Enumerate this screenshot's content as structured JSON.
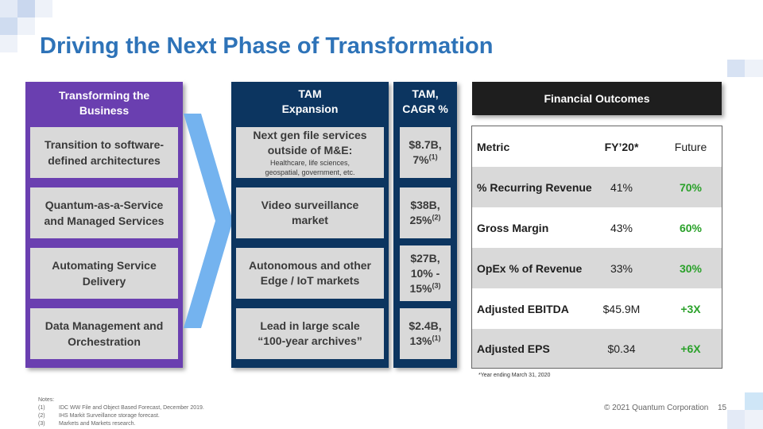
{
  "title": "Driving the Next Phase of Transformation",
  "colors": {
    "title": "#2e73b8",
    "purple": "#6a3fb0",
    "navy": "#0c3560",
    "box": "#d9d9d9",
    "green": "#2aa12a",
    "arrow": "#74b3ef"
  },
  "transforming": {
    "head_line1": "Transforming the",
    "head_line2": "Business",
    "items": [
      {
        "line1": "Transition to software-",
        "line2": "defined architectures"
      },
      {
        "line1": "Quantum-as-a-Service",
        "line2": "and Managed Services"
      },
      {
        "line1": "Automating Service",
        "line2": "Delivery"
      },
      {
        "line1": "Data Management and",
        "line2": "Orchestration"
      }
    ]
  },
  "tam": {
    "head_line1": "TAM",
    "head_line2": "Expansion",
    "items": [
      {
        "line1": "Next gen file services",
        "line2": "outside of M&E:",
        "sub1": "Healthcare, life sciences,",
        "sub2": "geospatial, government, etc."
      },
      {
        "line1": "Video surveillance",
        "line2": "market"
      },
      {
        "line1": "Autonomous and other",
        "line2": "Edge / IoT markets"
      },
      {
        "line1": "Lead in large scale",
        "line2": "“100-year archives”"
      }
    ]
  },
  "cagr": {
    "head_line1": "TAM,",
    "head_line2": "CAGR %",
    "items": [
      {
        "line1": "$8.7B,",
        "line2": "7%",
        "sup": "(1)"
      },
      {
        "line1": "$38B,",
        "line2": "25%",
        "sup": "(2)"
      },
      {
        "line1": "$27B,",
        "line2": "10% -",
        "line3": "15%",
        "sup": "(3)"
      },
      {
        "line1": "$2.4B,",
        "line2": "13%",
        "sup": "(1)"
      }
    ]
  },
  "financial": {
    "head": "Financial Outcomes",
    "columns": [
      "Metric",
      "FY’20*",
      "Future"
    ],
    "rows": [
      {
        "metric": "% Recurring Revenue",
        "fy20": "41%",
        "future": "70%"
      },
      {
        "metric": "Gross Margin",
        "fy20": "43%",
        "future": "60%"
      },
      {
        "metric": "OpEx % of Revenue",
        "fy20": "33%",
        "future": "30%"
      },
      {
        "metric": "Adjusted EBITDA",
        "fy20": "$45.9M",
        "future": "+3X"
      },
      {
        "metric": "Adjusted EPS",
        "fy20": "$0.34",
        "future": "+6X"
      }
    ],
    "footnote": "*Year ending March 31, 2020"
  },
  "notes": {
    "label": "Notes:",
    "items": [
      {
        "num": "(1)",
        "text": "IDC WW File and Object Based Forecast, December 2019."
      },
      {
        "num": "(2)",
        "text": "IHS Markit Surveillance storage forecast."
      },
      {
        "num": "(3)",
        "text": "Markets and Markets research."
      }
    ]
  },
  "copyright": "© 2021 Quantum Corporation",
  "page_number": "15"
}
